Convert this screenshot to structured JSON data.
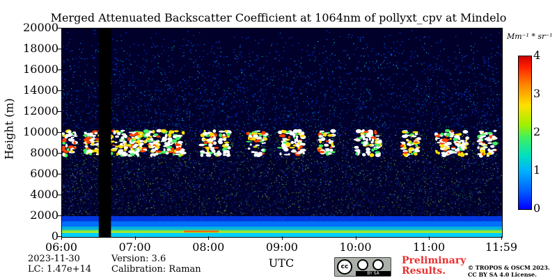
{
  "chart_data": {
    "type": "heatmap",
    "title": "Merged Attenuated Backscatter Coefficient at 1064nm of pollyxt_cpv at Mindelo",
    "ylabel": "Height (m)",
    "xlabel": "UTC",
    "x_range": [
      "06:00",
      "11:59"
    ],
    "ylim": [
      0,
      20000
    ],
    "y_ticks": [
      "20000",
      "18000",
      "16000",
      "14000",
      "12000",
      "10000",
      "8000",
      "6000",
      "4000",
      "2000",
      "0"
    ],
    "x_ticks": [
      "06:00",
      "07:00",
      "08:00",
      "09:00",
      "10:00",
      "11:00",
      "11:59"
    ],
    "colorbar": {
      "units": "Mm⁻¹ * sr⁻¹",
      "range": [
        0,
        4
      ],
      "ticks": [
        "4",
        "3",
        "2",
        "1",
        "0"
      ],
      "colormap": [
        "#0000ff",
        "#00b0ff",
        "#40f060",
        "#ffe000",
        "#ff8000",
        "#d00000"
      ]
    },
    "features": {
      "boundary_layer_top_m": 1000,
      "aerosol_layer_top_m": 2000,
      "cloud_layer_m": [
        7800,
        10200
      ],
      "no_data_interval": [
        "06:30",
        "06:40"
      ]
    }
  },
  "meta": {
    "date": "2023-11-30",
    "lc": "LC: 1.47e+14",
    "version": "Version: 3.6",
    "calibration": "Calibration: Raman"
  },
  "footer": {
    "cc_text": "cc",
    "cc_strip": "BY SA",
    "prelim_line1": "Preliminary",
    "prelim_line2": "Results.",
    "copyright_line1": "© TROPOS & OSCM 2023.",
    "copyright_line2": "CC BY SA 4.0 License."
  }
}
